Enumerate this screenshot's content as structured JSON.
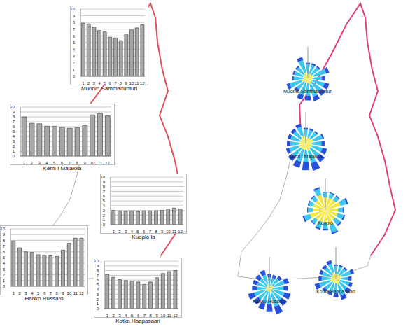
{
  "chart_data": [
    {
      "type": "bar",
      "title": "Muonio Sammaltunturi",
      "categories": [
        "1",
        "2",
        "3",
        "4",
        "5",
        "6",
        "7",
        "8",
        "9",
        "10",
        "11",
        "12"
      ],
      "values": [
        7.9,
        7.8,
        7.3,
        6.8,
        6.6,
        5.8,
        5.7,
        5.3,
        6.3,
        6.9,
        7.2,
        7.7
      ],
      "color": "#a6a6a6",
      "ylim": [
        0,
        10
      ],
      "yticks": [
        0,
        1,
        2,
        3,
        4,
        5,
        6,
        7,
        8,
        9,
        10
      ],
      "grid": true
    },
    {
      "type": "bar",
      "title": "Kemi I Majakka",
      "categories": [
        "1",
        "2",
        "3",
        "4",
        "5",
        "6",
        "7",
        "8",
        "9",
        "10",
        "11",
        "12"
      ],
      "values": [
        8.0,
        6.7,
        6.6,
        6.1,
        6.1,
        5.9,
        5.7,
        5.8,
        6.3,
        8.4,
        8.7,
        8.2
      ],
      "color": "#a6a6a6",
      "ylim": [
        0,
        10
      ],
      "yticks": [
        0,
        1,
        2,
        3,
        4,
        5,
        6,
        7,
        8,
        9,
        10
      ],
      "grid": true
    },
    {
      "type": "bar",
      "title": "Kuopio la",
      "categories": [
        "1",
        "2",
        "3",
        "4",
        "5",
        "6",
        "7",
        "8",
        "9",
        "10",
        "11",
        "12"
      ],
      "values": [
        3.0,
        2.9,
        2.8,
        2.9,
        2.8,
        2.9,
        2.9,
        2.9,
        3.0,
        3.3,
        3.5,
        3.3
      ],
      "color": "#a6a6a6",
      "ylim": [
        0,
        10
      ],
      "yticks": [
        0,
        1,
        2,
        3,
        4,
        5,
        6,
        7,
        8,
        9,
        10
      ],
      "grid": true
    },
    {
      "type": "bar",
      "title": "Hanko Russarö",
      "categories": [
        "1",
        "2",
        "3",
        "4",
        "5",
        "6",
        "7",
        "8",
        "9",
        "10",
        "11",
        "12"
      ],
      "values": [
        7.9,
        6.7,
        6.0,
        5.9,
        5.5,
        5.4,
        5.3,
        5.2,
        6.3,
        7.5,
        8.4,
        8.4
      ],
      "color": "#a6a6a6",
      "ylim": [
        0,
        10
      ],
      "yticks": [
        0,
        1,
        2,
        3,
        4,
        5,
        6,
        7,
        8,
        9,
        10
      ],
      "grid": true
    },
    {
      "type": "bar",
      "title": "Kotka Haapasaari",
      "categories": [
        "1",
        "2",
        "3",
        "4",
        "5",
        "6",
        "7",
        "8",
        "9",
        "10",
        "11",
        "12"
      ],
      "values": [
        7.2,
        6.6,
        6.1,
        5.9,
        5.8,
        5.6,
        5.1,
        5.6,
        6.5,
        7.4,
        7.8,
        8.0
      ],
      "color": "#a6a6a6",
      "ylim": [
        0,
        10
      ],
      "yticks": [
        0,
        1,
        2,
        3,
        4,
        5,
        6,
        7,
        8,
        9,
        10
      ],
      "grid": true
    },
    {
      "type": "wind_rose",
      "title": "Muonio Sammaltunturi",
      "categories": [
        null,
        null,
        null,
        null,
        null,
        null,
        null,
        null,
        null,
        null,
        null,
        null,
        null,
        null,
        null,
        null
      ],
      "stacked": true,
      "tick_labels": false,
      "ylim": [
        0,
        10
      ],
      "series": [
        {
          "color": "#f2e63c",
          "values": [
            2,
            1.5,
            1.5,
            1.5,
            2,
            1.5,
            1.5,
            1.5,
            2,
            1.5,
            1.5,
            1.5,
            2,
            1.5,
            1.5,
            1.5
          ]
        },
        {
          "color": "#3cc8f0",
          "values": [
            4,
            3,
            3,
            3,
            4,
            3,
            4,
            4,
            4,
            4,
            4,
            3,
            4,
            3,
            3,
            3
          ]
        },
        {
          "color": "#2850d8",
          "values": [
            1,
            0.5,
            0.5,
            0.5,
            1,
            1,
            1.5,
            1.5,
            1.5,
            1.5,
            1.5,
            1,
            1,
            0.5,
            0.5,
            0.5
          ]
        }
      ]
    },
    {
      "type": "wind_rose",
      "title": "Kemi I Majakka",
      "categories": [
        null,
        null,
        null,
        null,
        null,
        null,
        null,
        null,
        null,
        null,
        null,
        null,
        null,
        null,
        null,
        null
      ],
      "stacked": true,
      "tick_labels": false,
      "ylim": [
        0,
        10
      ],
      "series": [
        {
          "color": "#f2e63c",
          "values": [
            2.5,
            2,
            2,
            2,
            2.5,
            2,
            2,
            2,
            2.5,
            2,
            2,
            2,
            2.5,
            2,
            2,
            2
          ]
        },
        {
          "color": "#3cc8f0",
          "values": [
            3,
            2.5,
            2.5,
            2.5,
            3,
            3,
            3.5,
            3.5,
            4,
            4,
            4,
            3.5,
            3,
            3,
            3,
            3
          ]
        },
        {
          "color": "#2850d8",
          "values": [
            1,
            0.5,
            0.5,
            0.5,
            0.5,
            1,
            1.5,
            2,
            2.5,
            2.5,
            2,
            1.5,
            1,
            1,
            1,
            1
          ]
        }
      ]
    },
    {
      "type": "wind_rose",
      "title": "Kuopio",
      "categories": [
        null,
        null,
        null,
        null,
        null,
        null,
        null,
        null,
        null,
        null,
        null,
        null,
        null,
        null,
        null,
        null
      ],
      "stacked": true,
      "tick_labels": false,
      "ylim": [
        0,
        10
      ],
      "series": [
        {
          "color": "#f2e63c",
          "values": [
            5,
            4,
            4,
            4,
            5,
            4,
            4,
            4,
            5,
            4,
            4,
            4,
            5,
            4,
            4,
            4
          ]
        },
        {
          "color": "#3cc8f0",
          "values": [
            2,
            1.5,
            1.5,
            1.5,
            2,
            1.5,
            2,
            2,
            2.5,
            2,
            2,
            1.5,
            2,
            1.5,
            1.5,
            1.5
          ]
        },
        {
          "color": "#2850d8",
          "values": [
            0.5,
            0.3,
            0.3,
            0.3,
            0.5,
            0.3,
            0.5,
            0.5,
            0.5,
            0.5,
            0.5,
            0.3,
            0.5,
            0.3,
            0.3,
            0.3
          ]
        }
      ]
    },
    {
      "type": "wind_rose",
      "title": "Hanko Russarö",
      "categories": [
        null,
        null,
        null,
        null,
        null,
        null,
        null,
        null,
        null,
        null,
        null,
        null,
        null,
        null,
        null,
        null
      ],
      "stacked": true,
      "tick_labels": false,
      "ylim": [
        0,
        10
      ],
      "series": [
        {
          "color": "#f2e63c",
          "values": [
            1.5,
            1,
            1,
            1,
            1.5,
            1,
            1,
            1,
            1.5,
            1,
            1,
            1,
            1.5,
            1,
            1,
            1
          ]
        },
        {
          "color": "#3cc8f0",
          "values": [
            3,
            2.5,
            2.5,
            3,
            3.5,
            3.5,
            4,
            4,
            4.5,
            4,
            4,
            3.5,
            3.5,
            3,
            3,
            3
          ]
        },
        {
          "color": "#2850d8",
          "values": [
            1.5,
            1,
            1,
            1,
            1.5,
            1.5,
            2,
            2,
            2.5,
            2.5,
            2,
            2,
            2,
            1.5,
            1.5,
            1.5
          ]
        }
      ]
    },
    {
      "type": "wind_rose",
      "title": "Kotka Haapasaari",
      "categories": [
        null,
        null,
        null,
        null,
        null,
        null,
        null,
        null,
        null,
        null,
        null,
        null,
        null,
        null,
        null,
        null
      ],
      "stacked": true,
      "tick_labels": false,
      "ylim": [
        0,
        10
      ],
      "series": [
        {
          "color": "#f2e63c",
          "values": [
            2,
            1.5,
            1.5,
            1.5,
            2,
            1.5,
            1.5,
            1.5,
            2,
            1.5,
            1.5,
            1.5,
            2,
            1.5,
            1.5,
            1.5
          ]
        },
        {
          "color": "#3cc8f0",
          "values": [
            3,
            2.5,
            2.5,
            2.5,
            3,
            2.5,
            3,
            3,
            3.5,
            3,
            3,
            3,
            3.5,
            3,
            3,
            3
          ]
        },
        {
          "color": "#2850d8",
          "values": [
            1,
            0.5,
            0.5,
            0.5,
            1,
            1,
            1,
            1.5,
            1.5,
            1.5,
            1,
            1,
            1.5,
            1,
            1,
            1
          ]
        }
      ]
    }
  ]
}
